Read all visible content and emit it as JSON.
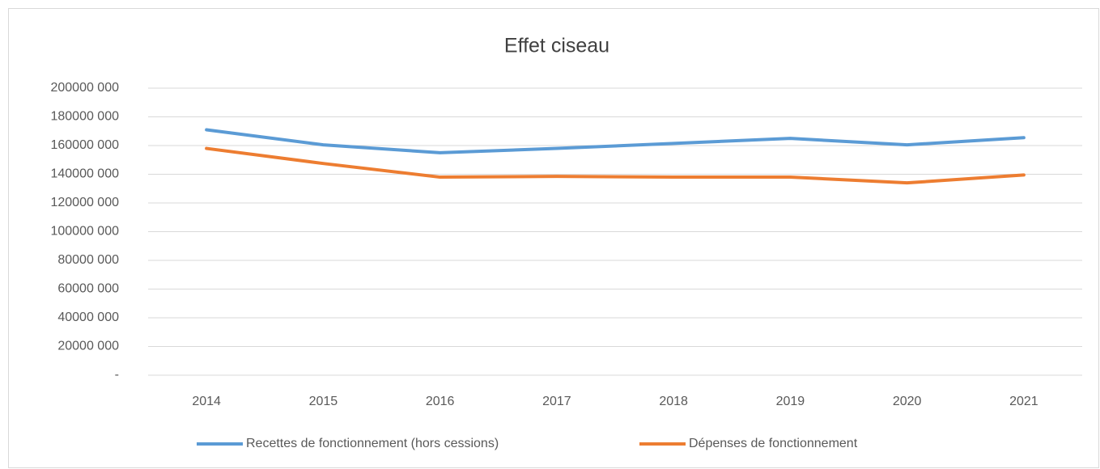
{
  "chart_data": {
    "type": "line",
    "title": "Effet ciseau",
    "categories": [
      "2014",
      "2015",
      "2016",
      "2017",
      "2018",
      "2019",
      "2020",
      "2021"
    ],
    "series": [
      {
        "name": "Recettes de fonctionnement (hors cessions)",
        "color": "#5b9bd5",
        "values": [
          171000000,
          160500000,
          155000000,
          158000000,
          161500000,
          165000000,
          160500000,
          165500000
        ]
      },
      {
        "name": "Dépenses de fonctionnement",
        "color": "#ed7d31",
        "values": [
          158000000,
          147500000,
          138000000,
          138500000,
          138000000,
          138000000,
          134000000,
          139500000
        ]
      }
    ],
    "ylim": [
      0,
      200000000
    ],
    "yticks": [
      {
        "value": 0,
        "label": "-"
      },
      {
        "value": 20000000,
        "label": "20000 000"
      },
      {
        "value": 40000000,
        "label": "40000 000"
      },
      {
        "value": 60000000,
        "label": "60000 000"
      },
      {
        "value": 80000000,
        "label": "80000 000"
      },
      {
        "value": 100000000,
        "label": "100000 000"
      },
      {
        "value": 120000000,
        "label": "120000 000"
      },
      {
        "value": 140000000,
        "label": "140000 000"
      },
      {
        "value": 160000000,
        "label": "160000 000"
      },
      {
        "value": 180000000,
        "label": "180000 000"
      },
      {
        "value": 200000000,
        "label": "200000 000"
      }
    ],
    "grid": true,
    "legend": "bottom"
  }
}
